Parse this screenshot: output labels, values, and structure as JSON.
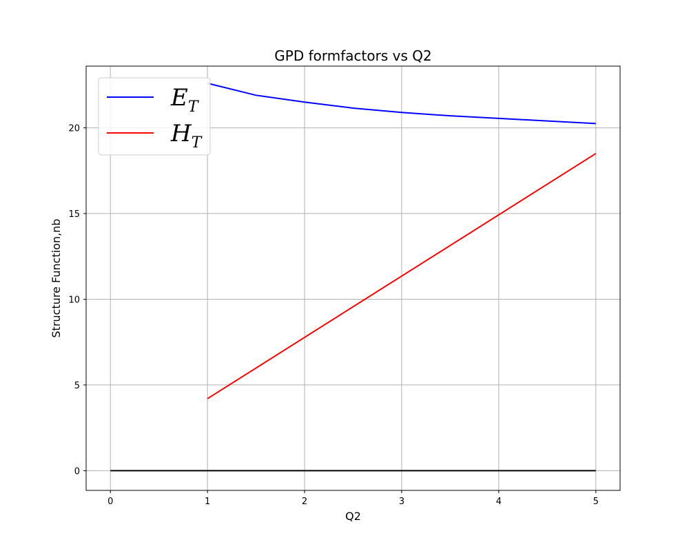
{
  "chart_data": {
    "type": "line",
    "title": "GPD formfactors vs Q2",
    "xlabel": "Q2",
    "ylabel": "Structure Function,nb",
    "xlim": [
      -0.25,
      5.25
    ],
    "ylim": [
      -1.15,
      23.6
    ],
    "xticks": [
      0,
      1,
      2,
      3,
      4,
      5
    ],
    "yticks": [
      0,
      5,
      10,
      15,
      20
    ],
    "grid": true,
    "legend_position": "top-left",
    "series": [
      {
        "name": "E_T",
        "legend_main": "E",
        "legend_sub": "T",
        "color": "#0000ff",
        "x": [
          1.0,
          1.5,
          2.0,
          2.5,
          3.0,
          3.5,
          4.0,
          4.5,
          5.0
        ],
        "y": [
          22.6,
          21.9,
          21.5,
          21.15,
          20.9,
          20.7,
          20.55,
          20.4,
          20.25
        ]
      },
      {
        "name": "H_T",
        "legend_main": "H",
        "legend_sub": "T",
        "color": "#ff0000",
        "x": [
          1.0,
          5.0
        ],
        "y": [
          4.2,
          18.5
        ]
      },
      {
        "name": "",
        "color": "#000000",
        "x": [
          0,
          5
        ],
        "y": [
          0,
          0
        ]
      }
    ]
  }
}
